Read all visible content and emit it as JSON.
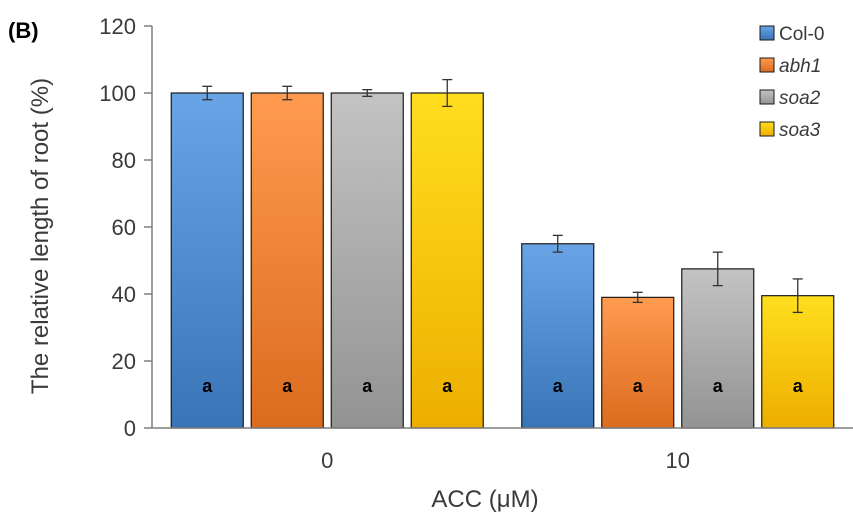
{
  "chart_data": {
    "type": "bar",
    "panel_label": "(B)",
    "xlabel": "ACC (μM)",
    "ylabel": "The relative length of root (%)",
    "categories": [
      "0",
      "10"
    ],
    "ylim": [
      0,
      120
    ],
    "yticks": [
      "0",
      "20",
      "40",
      "60",
      "80",
      "100",
      "120"
    ],
    "grid": false,
    "legend_position": "top-right",
    "series": [
      {
        "name": "Col-0",
        "italic": false,
        "color": "#4a86c8",
        "values": [
          100,
          55
        ],
        "errors": [
          2,
          2.5
        ],
        "annotations": [
          "a",
          "a"
        ]
      },
      {
        "name": "abh1",
        "italic": true,
        "color": "#ed7d31",
        "values": [
          100,
          39
        ],
        "errors": [
          2,
          1.5
        ],
        "annotations": [
          "a",
          "a"
        ]
      },
      {
        "name": "soa2",
        "italic": true,
        "color": "#a5a5a5",
        "values": [
          100,
          47.5
        ],
        "errors": [
          1,
          5
        ],
        "annotations": [
          "a",
          "a"
        ]
      },
      {
        "name": "soa3",
        "italic": true,
        "color": "#ffc000",
        "values": [
          100,
          39.5
        ],
        "errors": [
          4,
          5
        ],
        "annotations": [
          "a",
          "a"
        ]
      }
    ]
  }
}
